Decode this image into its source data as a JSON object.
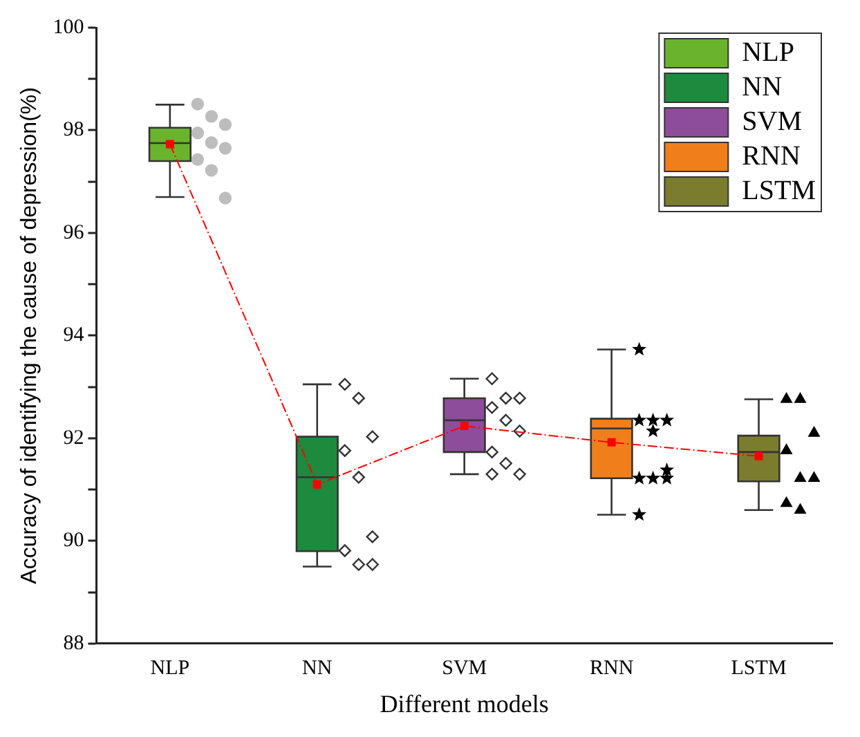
{
  "chart_data": {
    "type": "box",
    "xlabel": "Different models",
    "ylabel": "Accuracy of identifying the cause of depression(%)",
    "categories": [
      "NLP",
      "NN",
      "SVM",
      "RNN",
      "LSTM"
    ],
    "series": [
      {
        "type": "box",
        "name": "NLP",
        "color": "#6ab42d",
        "boxes": [
          {
            "low": 96.7,
            "q1": 97.4,
            "median": 97.75,
            "q3": 98.05,
            "high": 98.5
          },
          null,
          null,
          null,
          null
        ]
      },
      {
        "type": "box",
        "name": "NN",
        "color": "#1e8a3e",
        "boxes": [
          null,
          {
            "low": 89.5,
            "q1": 89.8,
            "median": 91.24,
            "q3": 92.03,
            "high": 93.05
          },
          null,
          null,
          null
        ]
      },
      {
        "type": "box",
        "name": "SVM",
        "color": "#8e4d9b",
        "boxes": [
          null,
          null,
          {
            "low": 91.3,
            "q1": 91.73,
            "median": 92.35,
            "q3": 92.78,
            "high": 93.16
          },
          null,
          null
        ]
      },
      {
        "type": "box",
        "name": "RNN",
        "color": "#f07f1b",
        "boxes": [
          null,
          null,
          null,
          {
            "low": 90.51,
            "q1": 91.22,
            "median": 92.19,
            "q3": 92.38,
            "high": 93.73
          },
          null
        ]
      },
      {
        "type": "box",
        "name": "LSTM",
        "color": "#7b7c2e",
        "boxes": [
          null,
          null,
          null,
          null,
          {
            "low": 90.6,
            "q1": 91.16,
            "median": 91.73,
            "q3": 92.05,
            "high": 92.76
          }
        ]
      },
      {
        "type": "line",
        "color": "#ff0000",
        "marker": "square",
        "line_style": "dashed",
        "values": [
          97.73,
          91.1,
          92.24,
          91.92,
          91.65
        ]
      },
      {
        "type": "scatter",
        "color": "#bdbdbd",
        "marker": "circle",
        "x": [
          "NLP",
          "NLP",
          "NLP",
          "NLP",
          "NLP",
          "NLP",
          "NLP",
          "NLP",
          "NLP"
        ],
        "values": [
          98.51,
          98.27,
          98.11,
          97.95,
          97.76,
          97.65,
          97.43,
          97.22,
          96.68
        ]
      },
      {
        "type": "scatter",
        "color": "#333333",
        "marker": "diamond",
        "x": [
          "NN",
          "NN",
          "NN",
          "NN",
          "NN",
          "NN",
          "NN",
          "NN",
          "NN"
        ],
        "values": [
          93.05,
          92.78,
          92.03,
          91.76,
          91.24,
          90.08,
          89.81,
          89.54,
          89.54
        ]
      },
      {
        "type": "scatter",
        "color": "#333333",
        "marker": "diamond",
        "x": [
          "SVM",
          "SVM",
          "SVM",
          "SVM",
          "SVM",
          "SVM",
          "SVM",
          "SVM",
          "SVM",
          "SVM"
        ],
        "values": [
          93.16,
          92.78,
          92.78,
          92.6,
          92.35,
          92.14,
          91.73,
          91.51,
          91.3,
          91.3
        ]
      },
      {
        "type": "scatter",
        "color": "#000000",
        "marker": "star",
        "x": [
          "RNN",
          "RNN",
          "RNN",
          "RNN",
          "RNN",
          "RNN",
          "RNN",
          "RNN",
          "RNN",
          "RNN"
        ],
        "values": [
          93.73,
          92.35,
          92.35,
          92.35,
          92.14,
          91.38,
          91.22,
          91.22,
          91.22,
          90.51
        ]
      },
      {
        "type": "scatter",
        "color": "#000000",
        "marker": "triangle",
        "x": [
          "LSTM",
          "LSTM",
          "LSTM",
          "LSTM",
          "LSTM",
          "LSTM",
          "LSTM",
          "LSTM"
        ],
        "values": [
          92.76,
          92.76,
          92.1,
          91.76,
          91.22,
          91.22,
          90.73,
          90.6
        ]
      }
    ],
    "ylim": [
      88,
      100
    ],
    "yticks": [
      88,
      {
        "value": 89,
        "label": null
      },
      90,
      {
        "value": 91,
        "label": null
      },
      92,
      {
        "value": 93,
        "label": null
      },
      94,
      {
        "value": 95,
        "label": null
      },
      96,
      {
        "value": 97,
        "label": null
      },
      98,
      {
        "value": 99,
        "label": null
      },
      100
    ],
    "grid": false,
    "legend": "top right"
  }
}
